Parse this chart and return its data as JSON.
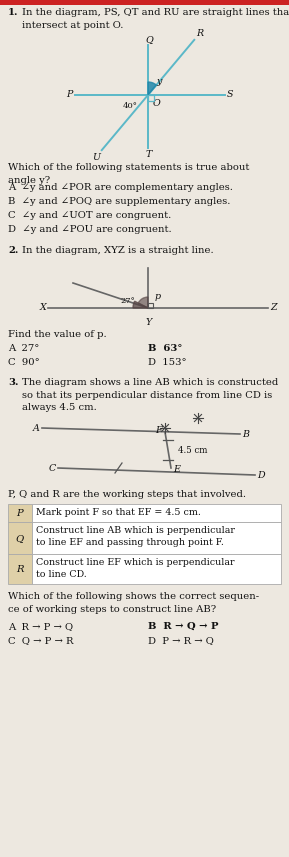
{
  "bg_color": "#ede8e0",
  "text_color": "#111111",
  "line_color": "#5bb8c8",
  "angle_fill": "#2288aa",
  "table_header_bg": "#dfd0a8",
  "table_border": "#aaaaaa",
  "q1_header_num": "1.",
  "q1_header_text": "In the diagram, PS, QT and RU are straight lines that\nintersect at point O.",
  "q1_question": "Which of the following statements is true about\nangle y?",
  "q1_choices": [
    "A  ∠y and ∠POR are complementary angles.",
    "B  ∠y and ∠POQ are supplementary angles.",
    "C  ∠y and ∠UOT are congruent.",
    "D  ∠y and ∠POU are congruent."
  ],
  "q2_header_num": "2.",
  "q2_header_text": "In the diagram, XYZ is a straight line.",
  "q2_question": "Find the value of p.",
  "q2_choices_left": [
    "A  27°",
    "C  90°"
  ],
  "q2_choices_right": [
    "B  63°",
    "D  153°"
  ],
  "q3_header_num": "3.",
  "q3_header_text": "The diagram shows a line AB which is constructed\nso that its perpendicular distance from line CD is\nalways 4.5 cm.",
  "q3_pqr_intro": "P, Q and R are the working steps that involved.",
  "table_rows": [
    [
      "P",
      "Mark point F so that EF = 4.5 cm."
    ],
    [
      "Q",
      "Construct line AB which is perpendicular\nto line EF and passing through point F."
    ],
    [
      "R",
      "Construct line EF which is perpendicular\nto line CD."
    ]
  ],
  "q3_question": "Which of the following shows the correct sequen-\nce of working steps to construct line AB?",
  "q3_choices_left": [
    "A  R → P → Q",
    "C  Q → P → R"
  ],
  "q3_choices_right": [
    "B  R → Q → P",
    "D  P → R → Q"
  ],
  "red_bar_color": "#cc2222"
}
